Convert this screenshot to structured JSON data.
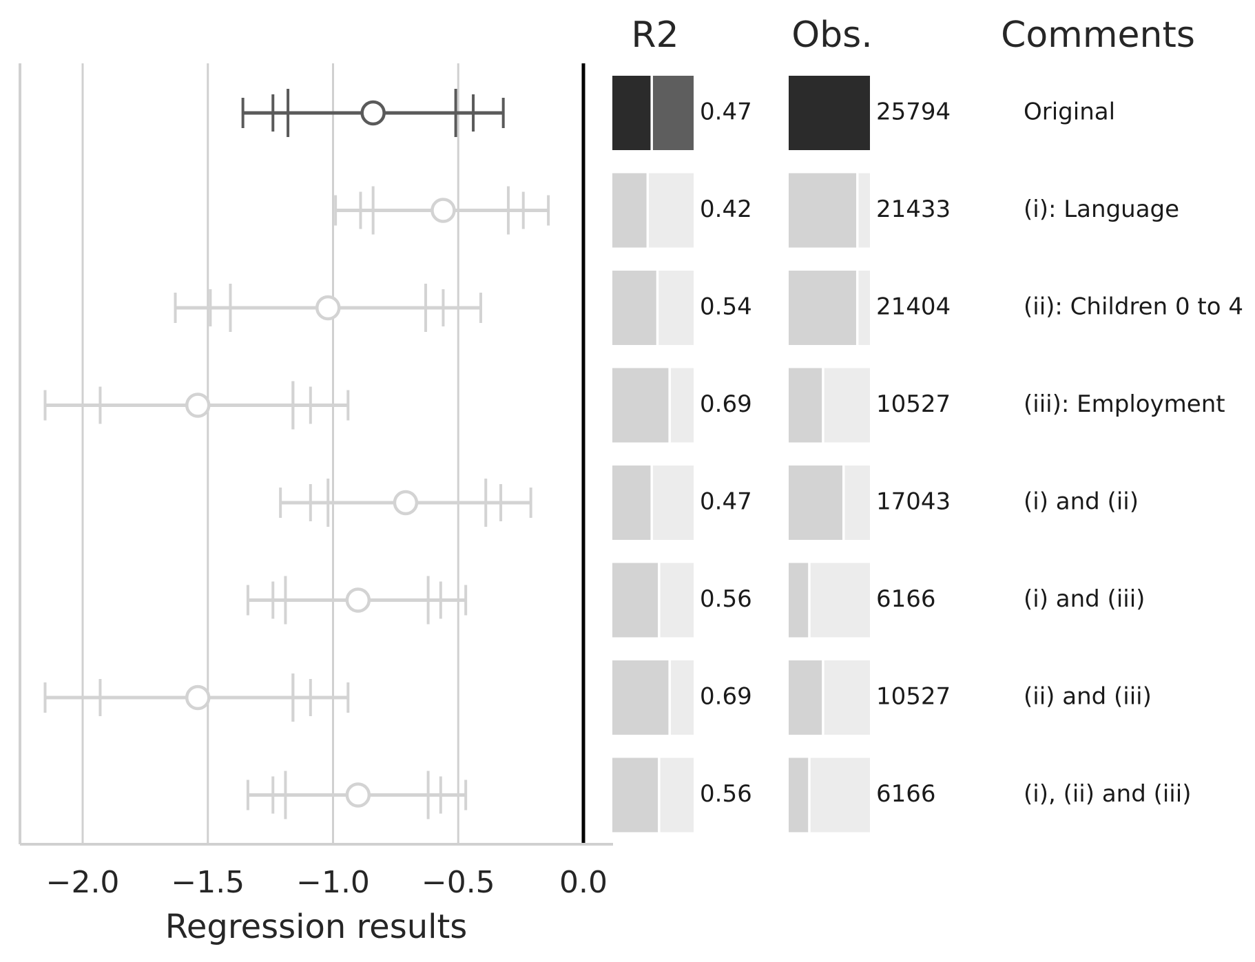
{
  "chart_data": {
    "type": "forest",
    "xlabel": "Regression results",
    "xlim": [
      -2.25,
      0.1
    ],
    "xticks": [
      -2.0,
      -1.5,
      -1.0,
      -0.5,
      0.0
    ],
    "xtick_labels": [
      "−2.0",
      "−1.5",
      "−1.0",
      "−0.5",
      "0.0"
    ],
    "reference_line": 0.0,
    "grid": "vertical",
    "column_headers": {
      "r2": "R2",
      "obs": "Obs.",
      "comments": "Comments"
    },
    "obs_max": 25794,
    "colors": {
      "highlight": "#5a5a5a",
      "muted": "#d3d3d3",
      "bar_dark": "#2b2b2b",
      "bar_dark_rest": "#5e5e5e",
      "bar_light": "#d3d3d3",
      "bar_light_rest": "#ececec",
      "grid": "#d0d0d0",
      "zero_line": "#000000"
    },
    "rows": [
      {
        "comment": "Original",
        "highlight": true,
        "estimate": -0.84,
        "ci_outer": [
          -1.36,
          -0.32
        ],
        "ci_mid": [
          -1.24,
          -0.44
        ],
        "ci_inner": [
          -1.18,
          -0.51
        ],
        "r2": 0.47,
        "r2_label": "0.47",
        "obs": 25794,
        "obs_label": "25794"
      },
      {
        "comment": "(i): Language",
        "highlight": false,
        "estimate": -0.56,
        "ci_outer": [
          -0.99,
          -0.14
        ],
        "ci_mid": [
          -0.89,
          -0.24
        ],
        "ci_inner": [
          -0.84,
          -0.3
        ],
        "r2": 0.42,
        "r2_label": "0.42",
        "obs": 21433,
        "obs_label": "21433"
      },
      {
        "comment": "(ii): Children 0 to 4",
        "highlight": false,
        "estimate": -1.02,
        "ci_outer": [
          -1.63,
          -0.41
        ],
        "ci_mid": [
          -1.49,
          -0.56
        ],
        "ci_inner": [
          -1.41,
          -0.63
        ],
        "r2": 0.54,
        "r2_label": "0.54",
        "obs": 21404,
        "obs_label": "21404"
      },
      {
        "comment": "(iii): Employment",
        "highlight": false,
        "estimate": -1.54,
        "ci_outer": [
          -2.15,
          -0.94
        ],
        "ci_mid": [
          -1.93,
          -1.09
        ],
        "ci_inner": [
          -1.16,
          -1.16
        ],
        "r2": 0.69,
        "r2_label": "0.69",
        "obs": 10527,
        "obs_label": "10527"
      },
      {
        "comment": "(i) and (ii)",
        "highlight": false,
        "estimate": -0.71,
        "ci_outer": [
          -1.21,
          -0.21
        ],
        "ci_mid": [
          -1.09,
          -0.33
        ],
        "ci_inner": [
          -1.02,
          -0.39
        ],
        "r2": 0.47,
        "r2_label": "0.47",
        "obs": 17043,
        "obs_label": "17043"
      },
      {
        "comment": "(i) and (iii)",
        "highlight": false,
        "estimate": -0.9,
        "ci_outer": [
          -1.34,
          -0.47
        ],
        "ci_mid": [
          -1.24,
          -0.57
        ],
        "ci_inner": [
          -1.19,
          -0.62
        ],
        "r2": 0.56,
        "r2_label": "0.56",
        "obs": 6166,
        "obs_label": "6166"
      },
      {
        "comment": "(ii) and (iii)",
        "highlight": false,
        "estimate": -1.54,
        "ci_outer": [
          -2.15,
          -0.94
        ],
        "ci_mid": [
          -1.93,
          -1.09
        ],
        "ci_inner": [
          -1.16,
          -1.16
        ],
        "r2": 0.69,
        "r2_label": "0.69",
        "obs": 10527,
        "obs_label": "10527"
      },
      {
        "comment": "(i), (ii) and (iii)",
        "highlight": false,
        "estimate": -0.9,
        "ci_outer": [
          -1.34,
          -0.47
        ],
        "ci_mid": [
          -1.24,
          -0.57
        ],
        "ci_inner": [
          -1.19,
          -0.62
        ],
        "r2": 0.56,
        "r2_label": "0.56",
        "obs": 6166,
        "obs_label": "6166"
      }
    ]
  }
}
